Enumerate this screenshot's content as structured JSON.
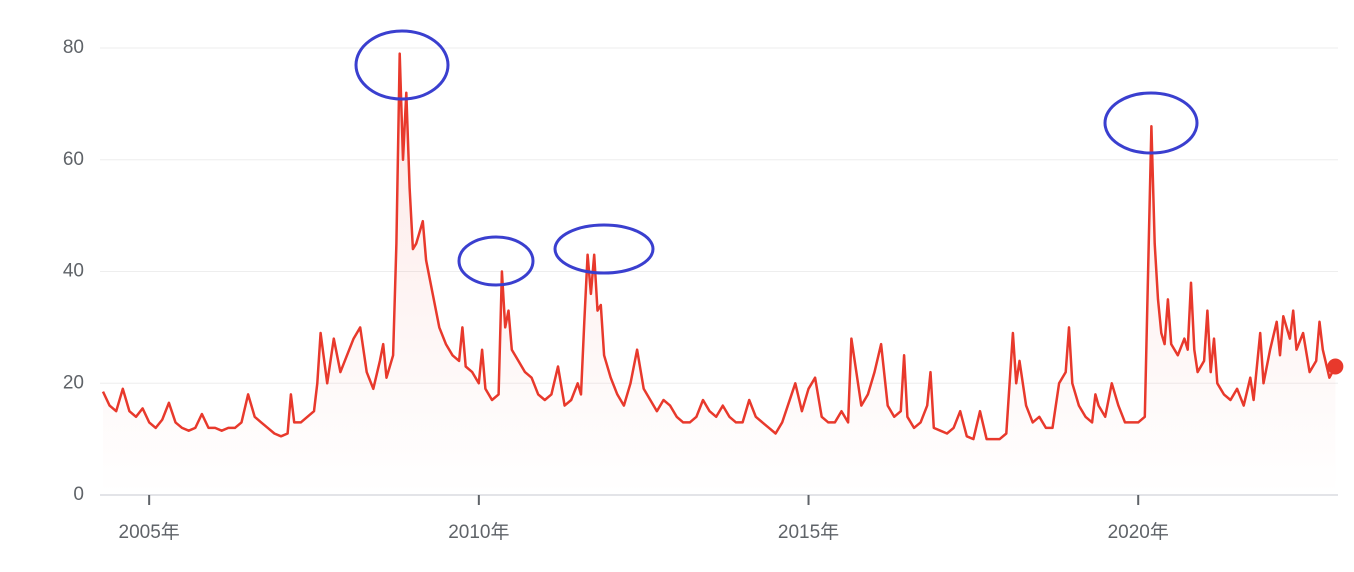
{
  "chart_data": {
    "type": "line",
    "color": "#e8392c",
    "grid": true,
    "xlim": [
      2004.3,
      2023.03
    ],
    "ylim": [
      0,
      80
    ],
    "yticks": [
      0,
      20,
      40,
      60,
      80
    ],
    "xticks": [
      {
        "value": 2005,
        "label": "2005年"
      },
      {
        "value": 2010,
        "label": "2010年"
      },
      {
        "value": 2015,
        "label": "2015年"
      },
      {
        "value": 2020,
        "label": "2020年"
      }
    ],
    "x": [
      2004.3,
      2004.4,
      2004.5,
      2004.6,
      2004.7,
      2004.8,
      2004.9,
      2005.0,
      2005.1,
      2005.2,
      2005.3,
      2005.4,
      2005.5,
      2005.6,
      2005.7,
      2005.8,
      2005.9,
      2006.0,
      2006.1,
      2006.2,
      2006.3,
      2006.4,
      2006.5,
      2006.6,
      2006.7,
      2006.8,
      2006.9,
      2007.0,
      2007.1,
      2007.15,
      2007.2,
      2007.3,
      2007.4,
      2007.5,
      2007.55,
      2007.6,
      2007.7,
      2007.8,
      2007.9,
      2008.0,
      2008.1,
      2008.2,
      2008.3,
      2008.4,
      2008.5,
      2008.55,
      2008.6,
      2008.7,
      2008.75,
      2008.8,
      2008.85,
      2008.9,
      2008.95,
      2009.0,
      2009.05,
      2009.15,
      2009.2,
      2009.3,
      2009.4,
      2009.5,
      2009.6,
      2009.7,
      2009.75,
      2009.8,
      2009.9,
      2010.0,
      2010.05,
      2010.1,
      2010.2,
      2010.3,
      2010.35,
      2010.4,
      2010.45,
      2010.5,
      2010.6,
      2010.7,
      2010.8,
      2010.9,
      2011.0,
      2011.1,
      2011.2,
      2011.3,
      2011.4,
      2011.5,
      2011.55,
      2011.6,
      2011.65,
      2011.7,
      2011.75,
      2011.8,
      2011.85,
      2011.9,
      2012.0,
      2012.1,
      2012.2,
      2012.3,
      2012.4,
      2012.5,
      2012.6,
      2012.7,
      2012.8,
      2012.9,
      2013.0,
      2013.1,
      2013.2,
      2013.3,
      2013.4,
      2013.5,
      2013.6,
      2013.7,
      2013.8,
      2013.9,
      2014.0,
      2014.1,
      2014.2,
      2014.3,
      2014.4,
      2014.5,
      2014.6,
      2014.8,
      2014.9,
      2015.0,
      2015.1,
      2015.2,
      2015.3,
      2015.4,
      2015.5,
      2015.6,
      2015.65,
      2015.7,
      2015.8,
      2015.9,
      2016.0,
      2016.1,
      2016.2,
      2016.3,
      2016.4,
      2016.45,
      2016.5,
      2016.6,
      2016.7,
      2016.8,
      2016.85,
      2016.9,
      2017.0,
      2017.1,
      2017.2,
      2017.3,
      2017.4,
      2017.5,
      2017.6,
      2017.7,
      2017.8,
      2017.9,
      2018.0,
      2018.1,
      2018.15,
      2018.2,
      2018.3,
      2018.4,
      2018.5,
      2018.6,
      2018.7,
      2018.8,
      2018.9,
      2018.95,
      2019.0,
      2019.1,
      2019.2,
      2019.3,
      2019.35,
      2019.4,
      2019.5,
      2019.6,
      2019.7,
      2019.8,
      2019.9,
      2020.0,
      2020.1,
      2020.15,
      2020.2,
      2020.25,
      2020.3,
      2020.35,
      2020.4,
      2020.45,
      2020.5,
      2020.6,
      2020.7,
      2020.75,
      2020.8,
      2020.85,
      2020.9,
      2021.0,
      2021.05,
      2021.1,
      2021.15,
      2021.2,
      2021.3,
      2021.4,
      2021.5,
      2021.6,
      2021.7,
      2021.75,
      2021.85,
      2021.9,
      2022.0,
      2022.1,
      2022.15,
      2022.2,
      2022.3,
      2022.35,
      2022.4,
      2022.5,
      2022.6,
      2022.7,
      2022.75,
      2022.8,
      2022.9,
      2022.99
    ],
    "values": [
      18.5,
      16,
      15,
      19,
      15,
      14,
      15.5,
      13,
      12,
      13.5,
      16.5,
      13,
      12,
      11.5,
      12,
      14.5,
      12,
      12,
      11.5,
      12,
      12,
      13,
      18,
      14,
      13,
      12,
      11,
      10.5,
      11,
      18,
      13,
      13,
      14,
      15,
      20,
      29,
      20,
      28,
      22,
      25,
      28,
      30,
      22,
      19,
      24,
      27,
      21,
      25,
      45,
      79,
      60,
      72,
      55,
      44,
      45,
      49,
      42,
      36,
      30,
      27,
      25,
      24,
      30,
      23,
      22,
      20,
      26,
      19,
      17,
      18,
      40,
      30,
      33,
      26,
      24,
      22,
      21,
      18,
      17,
      18,
      23,
      16,
      17,
      20,
      18,
      31,
      43,
      36,
      43,
      33,
      34,
      25,
      21,
      18,
      16,
      20,
      26,
      19,
      17,
      15,
      17,
      16,
      14,
      13,
      13,
      14,
      17,
      15,
      14,
      16,
      14,
      13,
      13,
      17,
      14,
      13,
      12,
      11,
      13,
      20,
      15,
      19,
      21,
      14,
      13,
      13,
      15,
      13,
      28,
      24,
      16,
      18,
      22,
      27,
      16,
      14,
      15,
      25,
      14,
      12,
      13,
      16,
      22,
      12,
      11.5,
      11,
      12,
      15,
      10.5,
      10,
      15,
      10,
      10,
      10,
      11,
      29,
      20,
      24,
      16,
      13,
      14,
      12,
      12,
      20,
      22,
      30,
      20,
      16,
      14,
      13,
      18,
      16,
      14,
      20,
      16,
      13,
      13,
      13,
      14,
      40,
      66,
      45,
      35,
      29,
      27,
      35,
      27,
      25,
      28,
      26,
      38,
      26,
      22,
      24,
      33,
      22,
      28,
      20,
      18,
      17,
      19,
      16,
      21,
      17,
      29,
      20,
      26,
      31,
      25,
      32,
      28,
      33,
      26,
      29,
      22,
      24,
      31,
      26,
      21,
      23
    ]
  }
}
